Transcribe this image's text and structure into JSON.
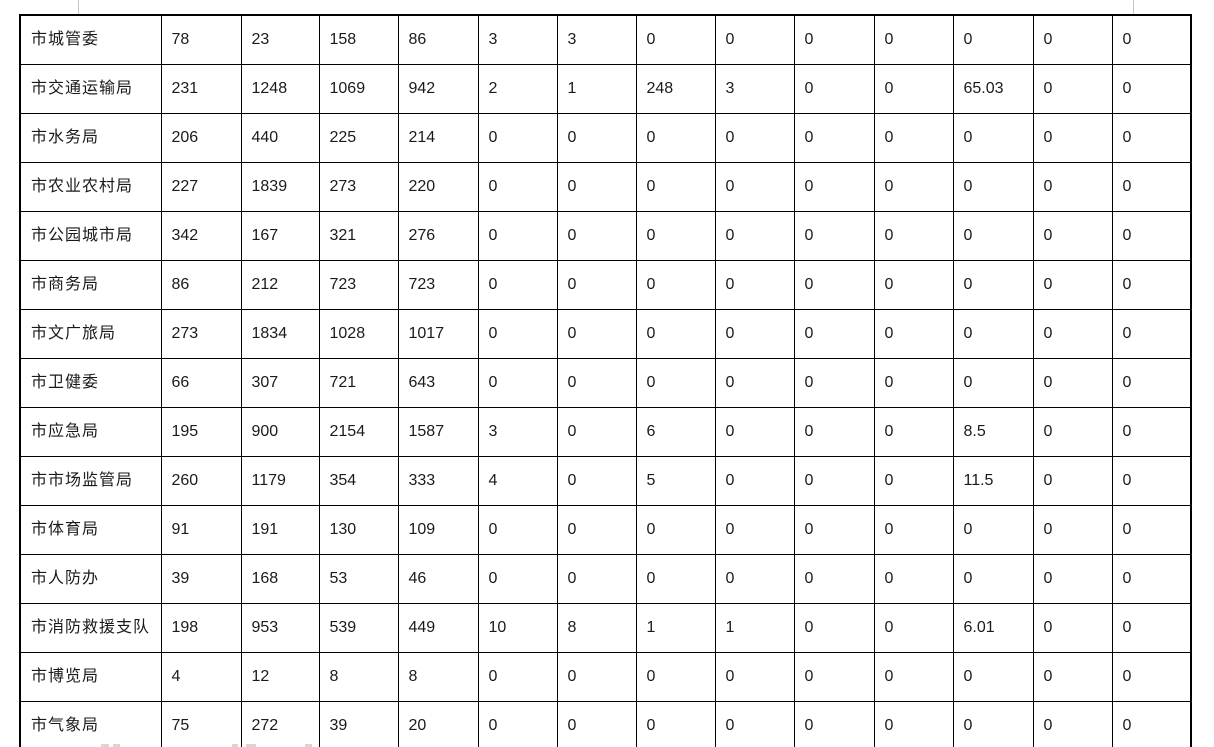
{
  "colors": {
    "table_border": "#000000",
    "text": "#1a1a1a",
    "background": "#ffffff",
    "margin_mark": "#c9c9c9"
  },
  "table": {
    "column_count": 14,
    "rows": [
      {
        "name": "市城管委",
        "values": [
          "78",
          "23",
          "158",
          "86",
          "3",
          "3",
          "0",
          "0",
          "0",
          "0",
          "0",
          "0",
          "0"
        ]
      },
      {
        "name": "市交通运输局",
        "values": [
          "231",
          "1248",
          "1069",
          "942",
          "2",
          "1",
          "248",
          "3",
          "0",
          "0",
          "65.03",
          "0",
          "0"
        ]
      },
      {
        "name": "市水务局",
        "values": [
          "206",
          "440",
          "225",
          "214",
          "0",
          "0",
          "0",
          "0",
          "0",
          "0",
          "0",
          "0",
          "0"
        ]
      },
      {
        "name": "市农业农村局",
        "values": [
          "227",
          "1839",
          "273",
          "220",
          "0",
          "0",
          "0",
          "0",
          "0",
          "0",
          "0",
          "0",
          "0"
        ]
      },
      {
        "name": "市公园城市局",
        "values": [
          "342",
          "167",
          "321",
          "276",
          "0",
          "0",
          "0",
          "0",
          "0",
          "0",
          "0",
          "0",
          "0"
        ]
      },
      {
        "name": "市商务局",
        "values": [
          "86",
          "212",
          "723",
          "723",
          "0",
          "0",
          "0",
          "0",
          "0",
          "0",
          "0",
          "0",
          "0"
        ]
      },
      {
        "name": "市文广旅局",
        "values": [
          "273",
          "1834",
          "1028",
          "1017",
          "0",
          "0",
          "0",
          "0",
          "0",
          "0",
          "0",
          "0",
          "0"
        ]
      },
      {
        "name": "市卫健委",
        "values": [
          "66",
          "307",
          "721",
          "643",
          "0",
          "0",
          "0",
          "0",
          "0",
          "0",
          "0",
          "0",
          "0"
        ]
      },
      {
        "name": "市应急局",
        "values": [
          "195",
          "900",
          "2154",
          "1587",
          "3",
          "0",
          "6",
          "0",
          "0",
          "0",
          "8.5",
          "0",
          "0"
        ]
      },
      {
        "name": "市市场监管局",
        "values": [
          "260",
          "1179",
          "354",
          "333",
          "4",
          "0",
          "5",
          "0",
          "0",
          "0",
          "11.5",
          "0",
          "0"
        ]
      },
      {
        "name": "市体育局",
        "values": [
          "91",
          "191",
          "130",
          "109",
          "0",
          "0",
          "0",
          "0",
          "0",
          "0",
          "0",
          "0",
          "0"
        ]
      },
      {
        "name": "市人防办",
        "values": [
          "39",
          "168",
          "53",
          "46",
          "0",
          "0",
          "0",
          "0",
          "0",
          "0",
          "0",
          "0",
          "0"
        ]
      },
      {
        "name": "市消防救援支队",
        "values": [
          "198",
          "953",
          "539",
          "449",
          "10",
          "8",
          "1",
          "1",
          "0",
          "0",
          "6.01",
          "0",
          "0"
        ]
      },
      {
        "name": "市博览局",
        "values": [
          "4",
          "12",
          "8",
          "8",
          "0",
          "0",
          "0",
          "0",
          "0",
          "0",
          "0",
          "0",
          "0"
        ]
      },
      {
        "name": "市气象局",
        "values": [
          "75",
          "272",
          "39",
          "20",
          "0",
          "0",
          "0",
          "0",
          "0",
          "0",
          "0",
          "0",
          "0"
        ]
      }
    ]
  }
}
